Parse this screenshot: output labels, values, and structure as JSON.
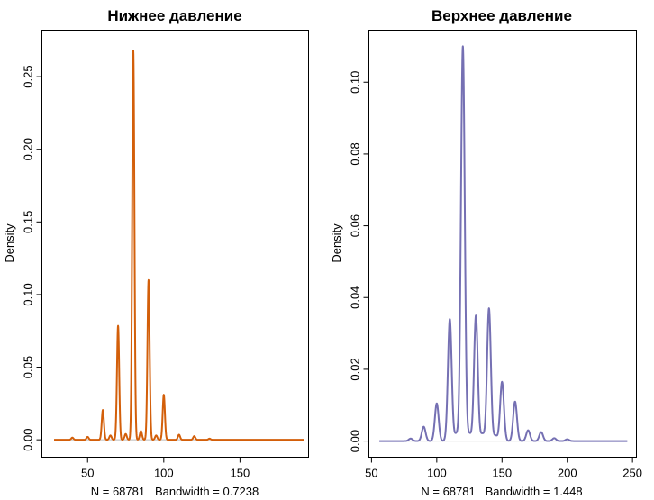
{
  "chart_data": [
    {
      "type": "line",
      "title": "Нижнее давление",
      "ylabel": "Density",
      "xlabel": "N = 68781   Bandwidth = 0.7238",
      "xlim": [
        20,
        195
      ],
      "ylim": [
        -0.012,
        0.282
      ],
      "xticks": [
        50,
        100,
        150
      ],
      "yticks": [
        0.0,
        0.05,
        0.1,
        0.15,
        0.2,
        0.25
      ],
      "ytick_labels": [
        "0.00",
        "0.05",
        "0.10",
        "0.15",
        "0.20",
        "0.25"
      ],
      "grid": false,
      "series": [
        {
          "color": "#d35f0a",
          "x_range": [
            28,
            192
          ],
          "sigma": 0.7238,
          "peaks": [
            {
              "x": 40,
              "y": 0.0015
            },
            {
              "x": 50,
              "y": 0.002
            },
            {
              "x": 60,
              "y": 0.0205
            },
            {
              "x": 65,
              "y": 0.003
            },
            {
              "x": 70,
              "y": 0.0785
            },
            {
              "x": 75,
              "y": 0.004
            },
            {
              "x": 80,
              "y": 0.268
            },
            {
              "x": 85,
              "y": 0.006
            },
            {
              "x": 90,
              "y": 0.11
            },
            {
              "x": 95,
              "y": 0.003
            },
            {
              "x": 100,
              "y": 0.031
            },
            {
              "x": 110,
              "y": 0.0035
            },
            {
              "x": 120,
              "y": 0.0025
            },
            {
              "x": 130,
              "y": 0.0008
            }
          ]
        }
      ]
    },
    {
      "type": "line",
      "title": "Верхнее давление",
      "ylabel": "Density",
      "xlabel": "N = 68781   Bandwidth = 1.448",
      "xlim": [
        48,
        253
      ],
      "ylim": [
        -0.0045,
        0.1145
      ],
      "xticks": [
        50,
        100,
        150,
        200,
        250
      ],
      "yticks": [
        0.0,
        0.02,
        0.04,
        0.06,
        0.08,
        0.1
      ],
      "ytick_labels": [
        "0.00",
        "0.02",
        "0.04",
        "0.06",
        "0.08",
        "0.10"
      ],
      "grid": false,
      "series": [
        {
          "color": "#7570b3",
          "x_range": [
            56,
            246
          ],
          "sigma": 1.448,
          "peaks": [
            {
              "x": 80,
              "y": 0.0007
            },
            {
              "x": 90,
              "y": 0.004
            },
            {
              "x": 100,
              "y": 0.0105
            },
            {
              "x": 110,
              "y": 0.034
            },
            {
              "x": 115,
              "y": 0.002
            },
            {
              "x": 120,
              "y": 0.11
            },
            {
              "x": 125,
              "y": 0.002
            },
            {
              "x": 130,
              "y": 0.035
            },
            {
              "x": 135,
              "y": 0.002
            },
            {
              "x": 140,
              "y": 0.037
            },
            {
              "x": 145,
              "y": 0.0015
            },
            {
              "x": 150,
              "y": 0.0165
            },
            {
              "x": 160,
              "y": 0.011
            },
            {
              "x": 170,
              "y": 0.003
            },
            {
              "x": 180,
              "y": 0.0025
            },
            {
              "x": 190,
              "y": 0.0008
            },
            {
              "x": 200,
              "y": 0.0005
            }
          ]
        }
      ]
    }
  ]
}
